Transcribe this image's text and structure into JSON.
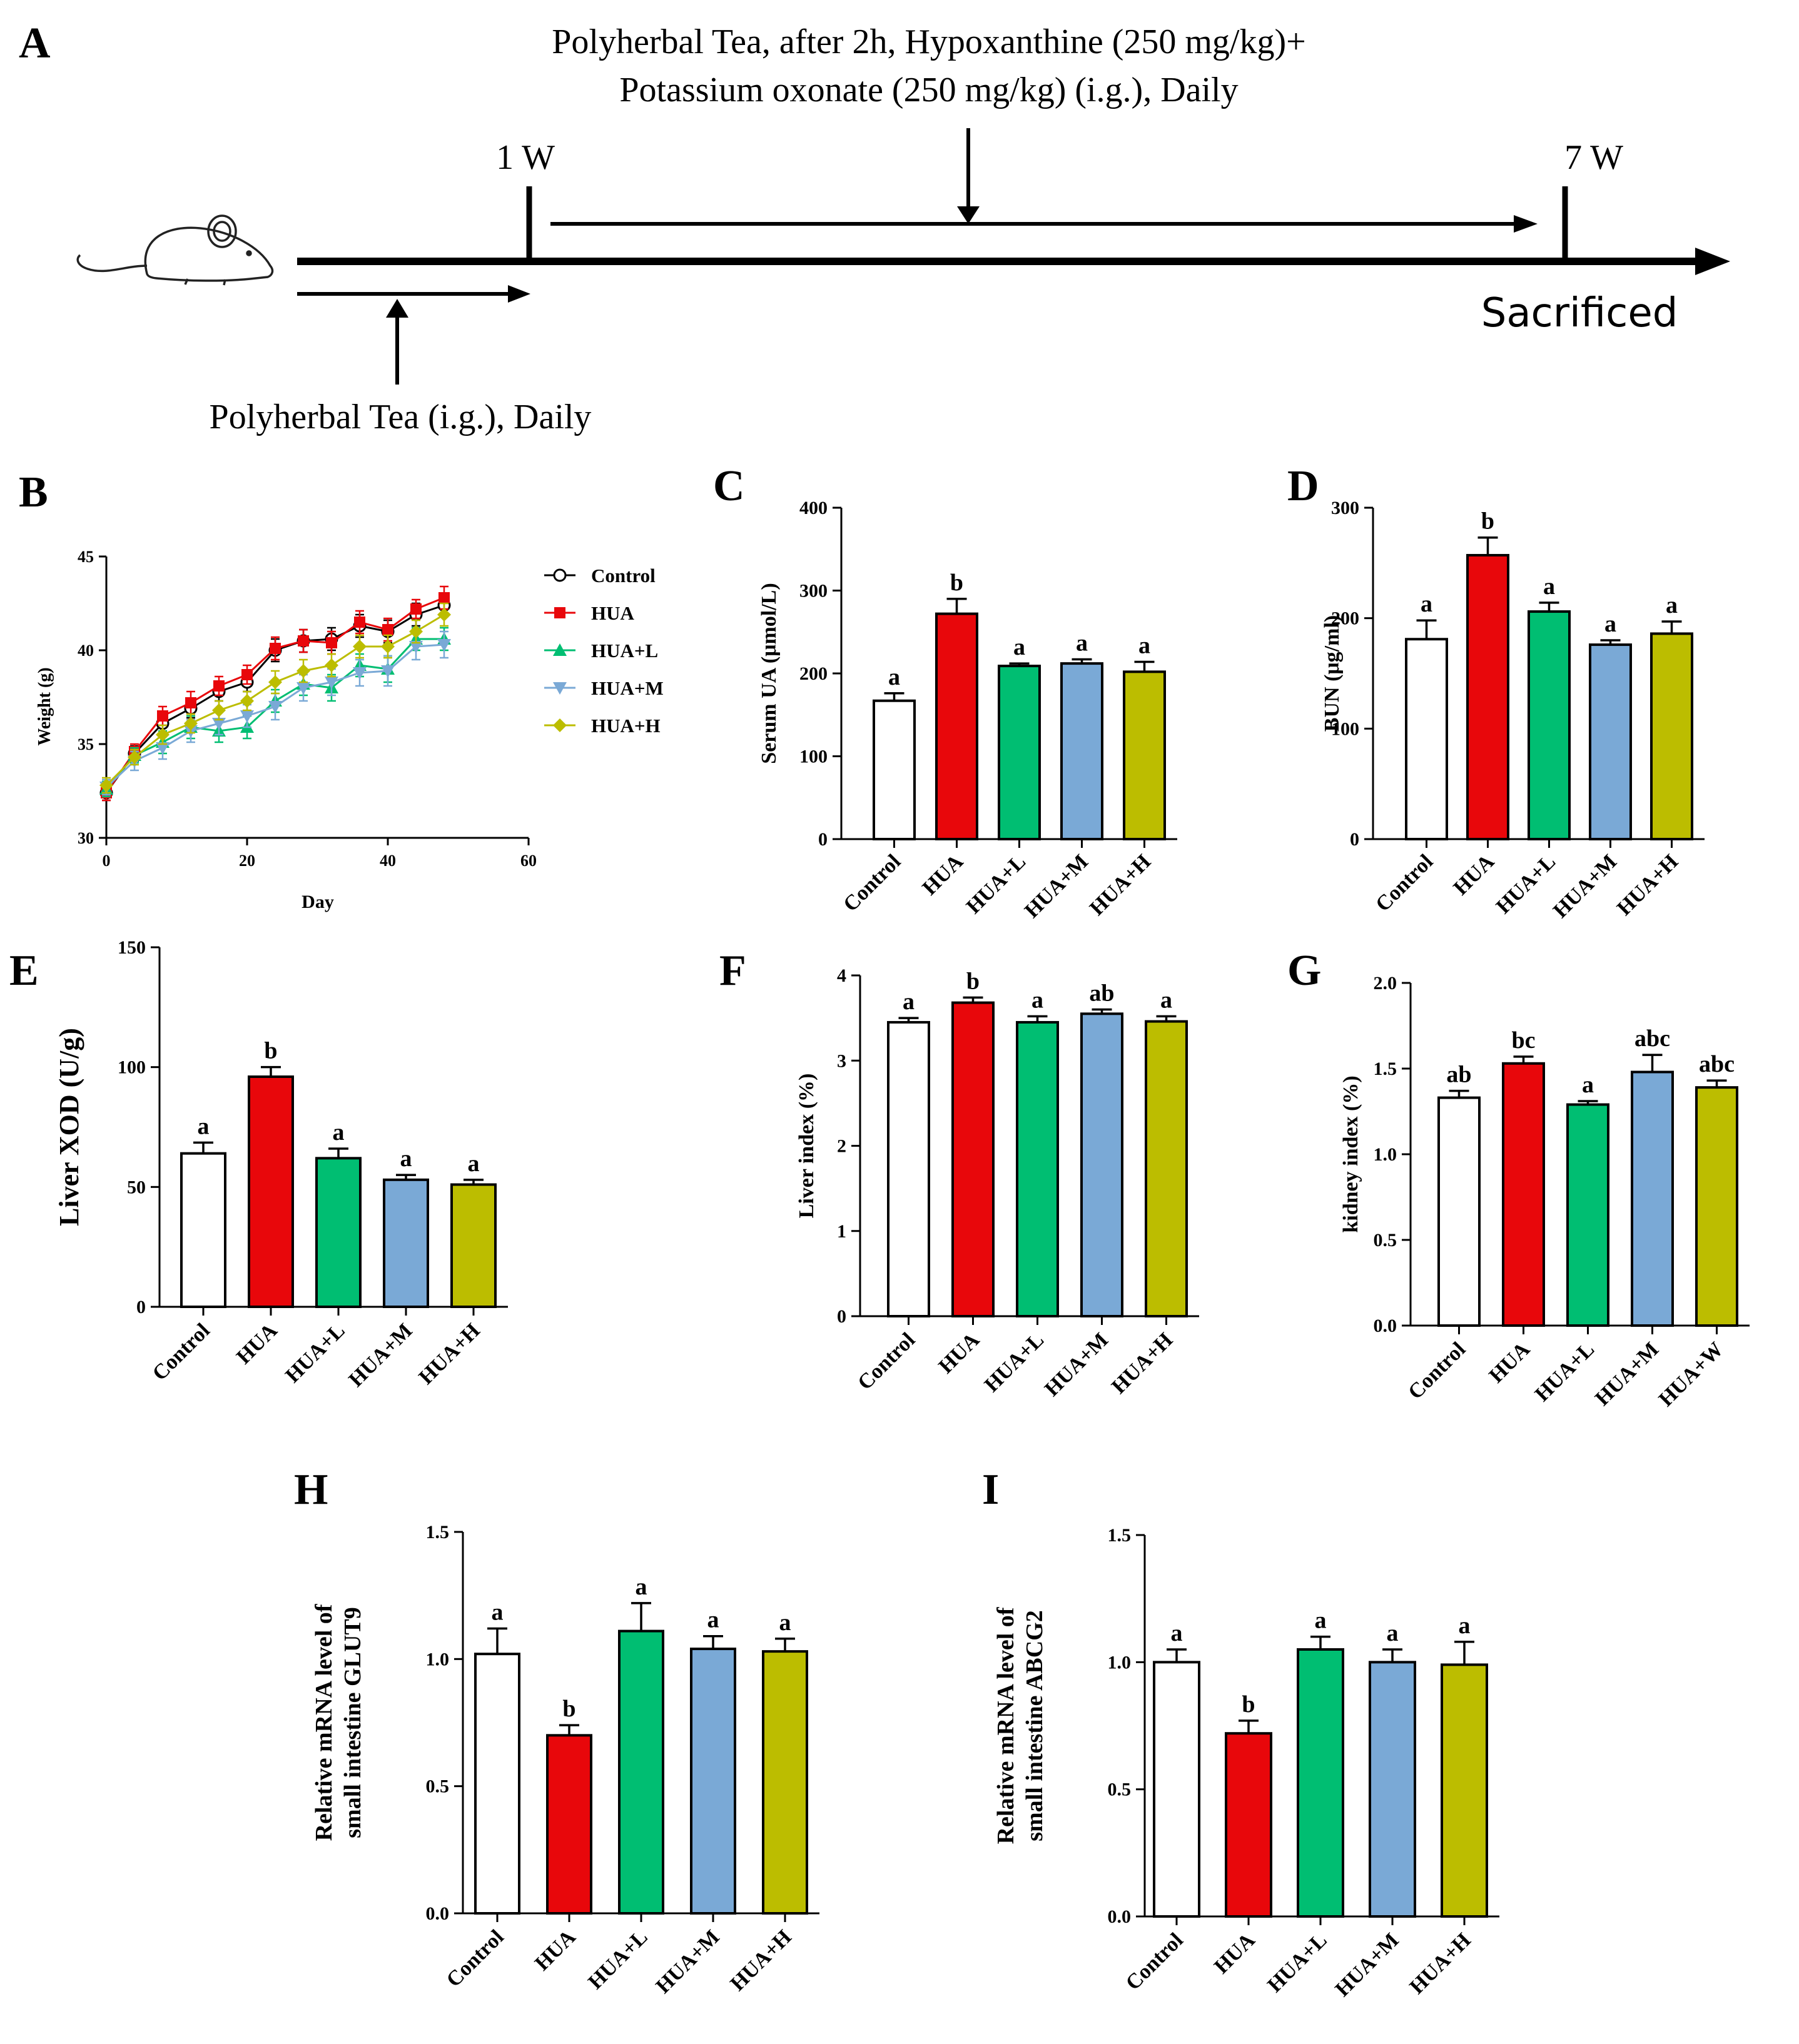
{
  "colors": {
    "Control": "#ffffff",
    "HUA": "#e8070b",
    "HUA+L": "#00be72",
    "HUA+M": "#7aa9d6",
    "HUA+H": "#bcbd00",
    "axis": "#000000"
  },
  "schematic": {
    "panel_letter": "A",
    "top_line1": "Polyherbal Tea, after 2h, Hypoxanthine (250 mg/kg)+",
    "top_line2": "Potassium oxonate (250 mg/kg) (i.g.), Daily",
    "week1": "1 W",
    "week7": "7 W",
    "end_label": "Sacrificed",
    "bottom_label": "Polyherbal Tea (i.g.), Daily",
    "mouse": "mouse-icon"
  },
  "chart_data": [
    {
      "id": "B",
      "type": "line",
      "panel_letter": "B",
      "title": "",
      "xlabel": "Day",
      "ylabel": "Weight (g)",
      "xlim": [
        0,
        60
      ],
      "ylim": [
        30,
        45
      ],
      "xticks": [
        "0",
        "20",
        "40",
        "60"
      ],
      "yticks": [
        "30",
        "35",
        "40",
        "45"
      ],
      "x": [
        0,
        4,
        8,
        12,
        16,
        20,
        24,
        28,
        32,
        36,
        40,
        44,
        48
      ],
      "legend_position": "right",
      "series": [
        {
          "name": "Control",
          "color": "#000000",
          "marker": "open-circle",
          "values": [
            32.4,
            34.5,
            36.1,
            36.9,
            37.8,
            38.3,
            40.0,
            40.5,
            40.6,
            41.3,
            41.0,
            41.9,
            42.4
          ],
          "errors": [
            0.4,
            0.4,
            0.5,
            0.5,
            0.5,
            0.5,
            0.6,
            0.6,
            0.6,
            0.6,
            0.6,
            0.6,
            0.6
          ]
        },
        {
          "name": "HUA",
          "color": "#e8070b",
          "marker": "square",
          "values": [
            32.4,
            34.6,
            36.5,
            37.2,
            38.1,
            38.7,
            40.1,
            40.5,
            40.4,
            41.5,
            41.1,
            42.2,
            42.8
          ],
          "errors": [
            0.4,
            0.4,
            0.5,
            0.6,
            0.5,
            0.5,
            0.6,
            0.6,
            0.6,
            0.6,
            0.6,
            0.5,
            0.6
          ]
        },
        {
          "name": "HUA+L",
          "color": "#00be72",
          "marker": "triangle-up",
          "values": [
            32.6,
            34.4,
            35.1,
            35.9,
            35.7,
            35.9,
            37.3,
            38.2,
            38.0,
            39.2,
            39.0,
            40.6,
            40.6
          ],
          "errors": [
            0.4,
            0.4,
            0.6,
            0.6,
            0.6,
            0.6,
            0.6,
            0.6,
            0.7,
            0.6,
            0.7,
            0.6,
            0.6
          ]
        },
        {
          "name": "HUA+M",
          "color": "#7aa9d6",
          "marker": "triangle-down",
          "values": [
            32.7,
            34.1,
            34.8,
            35.7,
            36.1,
            36.5,
            37.0,
            38.0,
            38.3,
            38.8,
            38.9,
            40.2,
            40.3
          ],
          "errors": [
            0.4,
            0.5,
            0.6,
            0.6,
            0.6,
            0.6,
            0.7,
            0.7,
            0.7,
            0.7,
            0.8,
            0.7,
            0.7
          ]
        },
        {
          "name": "HUA+H",
          "color": "#bcbd00",
          "marker": "diamond",
          "values": [
            32.8,
            34.3,
            35.5,
            36.1,
            36.8,
            37.3,
            38.3,
            38.9,
            39.2,
            40.2,
            40.2,
            41.0,
            41.9
          ],
          "errors": [
            0.4,
            0.4,
            0.5,
            0.5,
            0.5,
            0.5,
            0.6,
            0.6,
            0.6,
            0.6,
            0.6,
            0.6,
            0.6
          ]
        }
      ]
    },
    {
      "id": "C",
      "type": "bar",
      "panel_letter": "C",
      "title": "",
      "ylabel": "Serum UA (μmol/L)",
      "ylim": [
        0,
        400
      ],
      "yticks": [
        "0",
        "100",
        "200",
        "300",
        "400"
      ],
      "categories": [
        "Control",
        "HUA",
        "HUA+L",
        "HUA+M",
        "HUA+H"
      ],
      "values": [
        167,
        272,
        209,
        212,
        202
      ],
      "errors": [
        9,
        18,
        3,
        5,
        12
      ],
      "labels": [
        "a",
        "b",
        "a",
        "a",
        "a"
      ]
    },
    {
      "id": "D",
      "type": "bar",
      "panel_letter": "D",
      "title": "",
      "ylabel": "BUN (μg/ml)",
      "ylim": [
        0,
        300
      ],
      "yticks": [
        "0",
        "100",
        "200",
        "300"
      ],
      "categories": [
        "Control",
        "HUA",
        "HUA+L",
        "HUA+M",
        "HUA+H"
      ],
      "values": [
        181,
        257,
        206,
        176,
        186
      ],
      "errors": [
        17,
        16,
        8,
        4,
        11
      ],
      "labels": [
        "a",
        "b",
        "a",
        "a",
        "a"
      ]
    },
    {
      "id": "E",
      "type": "bar",
      "panel_letter": "E",
      "title": "",
      "ylabel": "Liver XOD (U/g)",
      "ylim": [
        0,
        150
      ],
      "yticks": [
        "0",
        "50",
        "100",
        "150"
      ],
      "categories": [
        "Control",
        "HUA",
        "HUA+L",
        "HUA+M",
        "HUA+H"
      ],
      "values": [
        64,
        96,
        62,
        53,
        51
      ],
      "errors": [
        4.5,
        4,
        4,
        2,
        2
      ],
      "labels": [
        "a",
        "b",
        "a",
        "a",
        "a"
      ]
    },
    {
      "id": "F",
      "type": "bar",
      "panel_letter": "F",
      "title": "",
      "ylabel": "Liver index (%)",
      "ylim": [
        0,
        4
      ],
      "yticks": [
        "0",
        "1",
        "2",
        "3",
        "4"
      ],
      "categories": [
        "Control",
        "HUA",
        "HUA+L",
        "HUA+M",
        "HUA+H"
      ],
      "values": [
        3.45,
        3.68,
        3.45,
        3.55,
        3.46
      ],
      "errors": [
        0.05,
        0.06,
        0.07,
        0.05,
        0.06
      ],
      "labels": [
        "a",
        "b",
        "a",
        "ab",
        "a"
      ]
    },
    {
      "id": "G",
      "type": "bar",
      "panel_letter": "G",
      "title": "",
      "ylabel": "kidney index (%)",
      "ylim": [
        0,
        2.0
      ],
      "yticks": [
        "0.0",
        "0.5",
        "1.0",
        "1.5",
        "2.0"
      ],
      "categories": [
        "Control",
        "HUA",
        "HUA+L",
        "HUA+M",
        "HUA+W"
      ],
      "values": [
        1.33,
        1.53,
        1.29,
        1.48,
        1.39
      ],
      "errors": [
        0.04,
        0.04,
        0.02,
        0.1,
        0.04
      ],
      "labels": [
        "ab",
        "bc",
        "a",
        "abc",
        "abc"
      ]
    },
    {
      "id": "H",
      "type": "bar",
      "panel_letter": "H",
      "title": "",
      "ylabel": [
        "Relative mRNA level of",
        "small intestine GLUT9"
      ],
      "ylim": [
        0,
        1.5
      ],
      "yticks": [
        "0.0",
        "0.5",
        "1.0",
        "1.5"
      ],
      "categories": [
        "Control",
        "HUA",
        "HUA+L",
        "HUA+M",
        "HUA+H"
      ],
      "values": [
        1.02,
        0.7,
        1.11,
        1.04,
        1.03
      ],
      "errors": [
        0.1,
        0.04,
        0.11,
        0.05,
        0.05
      ],
      "labels": [
        "a",
        "b",
        "a",
        "a",
        "a"
      ]
    },
    {
      "id": "I",
      "type": "bar",
      "panel_letter": "I",
      "title": "",
      "ylabel": [
        "Relative mRNA level of",
        "small intestine ABCG2"
      ],
      "ylim": [
        0,
        1.5
      ],
      "yticks": [
        "0.0",
        "0.5",
        "1.0",
        "1.5"
      ],
      "categories": [
        "Control",
        "HUA",
        "HUA+L",
        "HUA+M",
        "HUA+H"
      ],
      "values": [
        1.0,
        0.72,
        1.05,
        1.0,
        0.99
      ],
      "errors": [
        0.05,
        0.05,
        0.05,
        0.05,
        0.09
      ],
      "labels": [
        "a",
        "b",
        "a",
        "a",
        "a"
      ]
    }
  ]
}
